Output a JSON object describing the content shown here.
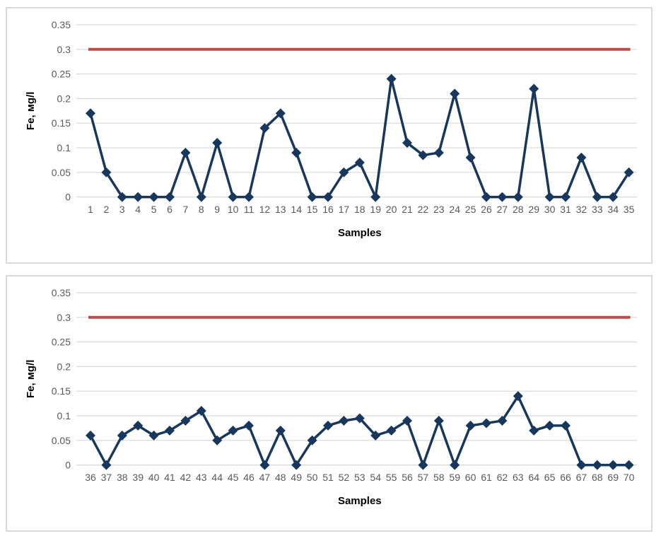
{
  "styles": {
    "grid_color": "#d9d9d9",
    "axis_line_color": "#d9d9d9",
    "tick_label_color": "#595959",
    "axis_title_color": "#000000",
    "series_color": "#17375d",
    "limit_color": "#be4b48",
    "panel_border_color": "#d9d9d9",
    "background": "#ffffff"
  },
  "chart_data": [
    {
      "type": "line",
      "title": "",
      "xlabel": "Samples",
      "ylabel": "Fe, мg/l",
      "ylim": [
        0,
        0.35
      ],
      "ytick_labels": [
        "0",
        "0.05",
        "0.1",
        "0.15",
        "0.2",
        "0.25",
        "0.3",
        "0.35"
      ],
      "grid": true,
      "legend": "none",
      "marker": "diamond",
      "categories": [
        1,
        2,
        3,
        4,
        5,
        6,
        7,
        8,
        9,
        10,
        11,
        12,
        13,
        14,
        15,
        16,
        17,
        18,
        19,
        20,
        21,
        22,
        23,
        24,
        25,
        26,
        27,
        28,
        29,
        30,
        31,
        32,
        33,
        34,
        35
      ],
      "values": [
        0.17,
        0.05,
        0,
        0,
        0,
        0,
        0.09,
        0,
        0.11,
        0,
        0,
        0.14,
        0.17,
        0.09,
        0,
        0,
        0.05,
        0.07,
        0,
        0.24,
        0.11,
        0.085,
        0.09,
        0.21,
        0.08,
        0,
        0,
        0,
        0.22,
        0,
        0,
        0.08,
        0,
        0,
        0.05
      ],
      "limit_line": {
        "value": 0.3
      }
    },
    {
      "type": "line",
      "title": "",
      "xlabel": "Samples",
      "ylabel": "Fe, мg/l",
      "ylim": [
        0,
        0.35
      ],
      "ytick_labels": [
        "0",
        "0.05",
        "0.1",
        "0.15",
        "0.2",
        "0.25",
        "0.3",
        "0.35"
      ],
      "grid": true,
      "legend": "none",
      "marker": "diamond",
      "categories": [
        36,
        37,
        38,
        39,
        40,
        41,
        42,
        43,
        44,
        45,
        46,
        47,
        48,
        49,
        50,
        51,
        52,
        53,
        54,
        55,
        56,
        57,
        58,
        59,
        60,
        61,
        62,
        63,
        64,
        65,
        66,
        67,
        68,
        69,
        70
      ],
      "values": [
        0.06,
        0,
        0.06,
        0.08,
        0.06,
        0.07,
        0.09,
        0.11,
        0.05,
        0.07,
        0.08,
        0,
        0.07,
        0,
        0.05,
        0.08,
        0.09,
        0.095,
        0.06,
        0.07,
        0.09,
        0,
        0.09,
        0,
        0.08,
        0.085,
        0.09,
        0.14,
        0.07,
        0.08,
        0.08,
        0,
        0,
        0,
        0
      ],
      "limit_line": {
        "value": 0.3
      }
    }
  ]
}
